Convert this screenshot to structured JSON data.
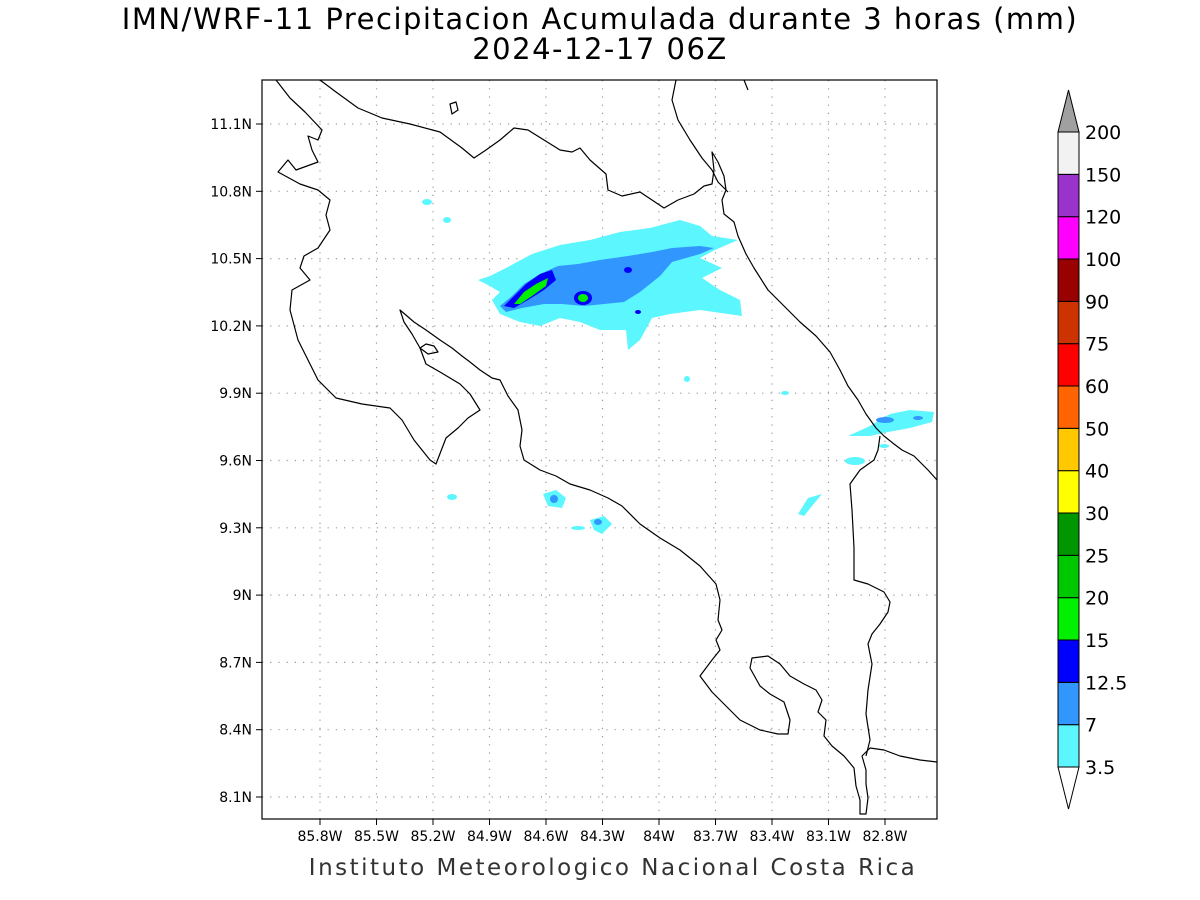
{
  "title": "IMN/WRF-11 Precipitacion Acumulada durante 3 horas (mm)",
  "subtitle": "2024-12-17 06Z",
  "footer": "Instituto Meteorologico Nacional Costa Rica",
  "map": {
    "lon_range": [
      -86.05,
      -82.55
    ],
    "lat_range": [
      8.0,
      11.3
    ],
    "lon_ticks": [
      "85.8W",
      "85.5W",
      "85.2W",
      "84.9W",
      "84.6W",
      "84.3W",
      "84W",
      "83.7W",
      "83.4W",
      "83.1W",
      "82.8W"
    ],
    "lat_ticks": [
      "11.1N",
      "10.8N",
      "10.5N",
      "10.2N",
      "9.9N",
      "9.6N",
      "9.3N",
      "9N",
      "8.7N",
      "8.4N",
      "8.1N"
    ],
    "grid": true
  },
  "colorbar": {
    "levels": [
      "3.5",
      "7",
      "12.5",
      "15",
      "20",
      "25",
      "30",
      "40",
      "50",
      "60",
      "75",
      "90",
      "100",
      "120",
      "150",
      "200"
    ],
    "colors": [
      "#ffffff",
      "#5cf6ff",
      "#3296ff",
      "#0000ff",
      "#00f000",
      "#00c800",
      "#009600",
      "#ffff00",
      "#ffc800",
      "#ff6400",
      "#ff0000",
      "#cc3300",
      "#990000",
      "#ff00ff",
      "#9933cc",
      "#f2f2f2",
      "#a0a0a0"
    ]
  }
}
